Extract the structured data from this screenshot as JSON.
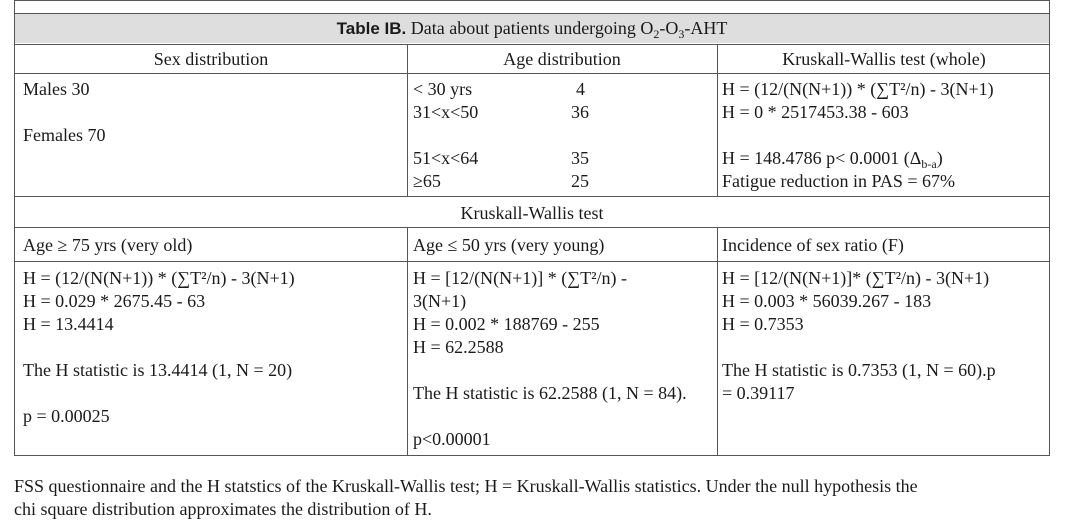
{
  "table": {
    "title_bold": "Table IB.",
    "title_text": " Data about patients undergoing O",
    "title_sub1": "2",
    "title_mid": "-O",
    "title_sub2": "3",
    "title_end": "-AHT",
    "headers": [
      "Sex distribution",
      "Age distribution",
      "Kruskall-Wallis test (whole)"
    ],
    "sex": [
      "Males 30",
      "Females 70"
    ],
    "age_rows": [
      {
        "range": "< 30 yrs",
        "count": "4"
      },
      {
        "range": "31<x<50",
        "count": "36"
      },
      {
        "range": "51<x<64",
        "count": "35"
      },
      {
        "range": "≥65",
        "count": "25"
      }
    ],
    "whole": {
      "line1": "H = (12/(N(N+1)) * (∑T²/n) - 3(N+1)",
      "line2": "H = 0 * 2517453.38 - 603",
      "line3a": "H = 148.4786 p< 0.0001 (Δ",
      "line3sub": "b-a",
      "line3b": ")",
      "line4": "Fatigue reduction in PAS = 67%"
    },
    "kw_title": "Kruskall-Wallis test",
    "sub_headers": [
      "Age ≥ 75 yrs (very old)",
      "Age ≤ 50 yrs (very young)",
      "Incidence of sex ratio (F)"
    ],
    "col1": {
      "l1": "H = (12/(N(N+1)) * (∑T²/n) - 3(N+1)",
      "l2": "H = 0.029 * 2675.45 - 63",
      "l3": "H = 13.4414",
      "l4": "The H statistic is 13.4414 (1, N = 20)",
      "l5": "p = 0.00025"
    },
    "col2": {
      "l1": "H = [12/(N(N+1)] * (∑T²/n) -",
      "l2": "3(N+1)",
      "l3": "H = 0.002 * 188769 - 255",
      "l4": "H = 62.2588",
      "l5": "The H statistic is 62.2588 (1, N = 84).",
      "l6": "p<0.00001"
    },
    "col3": {
      "l1": "H = [12/(N(N+1)]* (∑T²/n) - 3(N+1)",
      "l2": "H = 0.003 * 56039.267 - 183",
      "l3": "H = 0.7353",
      "l4": "The H statistic is 0.7353 (1, N = 60).p",
      "l5": "= 0.39117"
    }
  },
  "caption": {
    "line1": "FSS questionnaire and the H statstics of the Kruskall-Wallis test; H = Kruskall-Wallis statistics. Under the null hypothesis the",
    "line2": "chi square distribution approximates the distribution of H."
  }
}
